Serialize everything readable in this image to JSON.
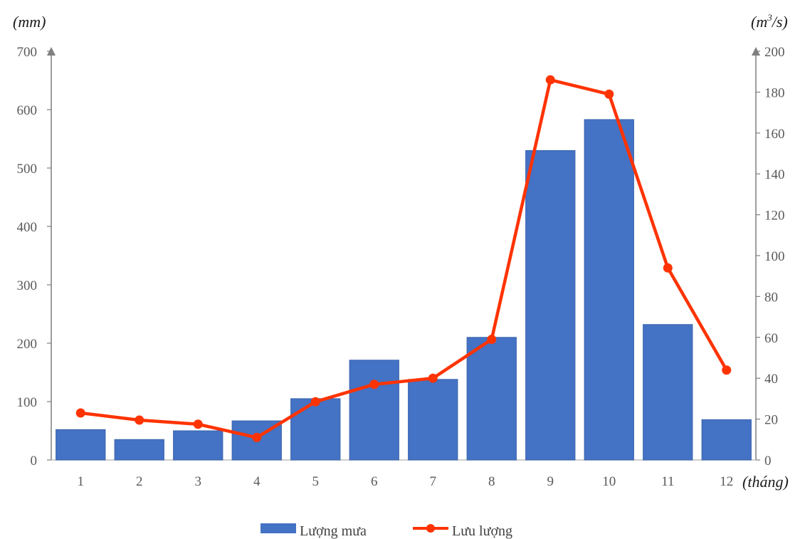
{
  "chart_data": {
    "type": "bar+line",
    "categories": [
      "1",
      "2",
      "3",
      "4",
      "5",
      "6",
      "7",
      "8",
      "9",
      "10",
      "11",
      "12"
    ],
    "x_unit": "(tháng)",
    "series": [
      {
        "name": "Lượng mưa",
        "type": "bar",
        "axis": "left",
        "color": "#4472C4",
        "values": [
          52,
          35,
          50,
          67,
          105,
          171,
          138,
          210,
          530,
          583,
          232,
          69
        ]
      },
      {
        "name": "Lưu lượng",
        "type": "line",
        "axis": "right",
        "color": "#FF3300",
        "values": [
          23,
          19.5,
          17.5,
          11,
          28.5,
          37,
          40,
          59,
          186,
          179,
          94,
          44
        ]
      }
    ],
    "y_left": {
      "unit": "(mm)",
      "ylim": [
        0,
        700
      ],
      "ticks": [
        "0",
        "100",
        "200",
        "300",
        "400",
        "500",
        "600",
        "700"
      ]
    },
    "y_right": {
      "unit_base": "(m",
      "unit_sup": "3",
      "unit_tail": "/s)",
      "ylim": [
        0,
        200
      ],
      "ticks": [
        "0",
        "20",
        "40",
        "60",
        "80",
        "100",
        "120",
        "140",
        "160",
        "180",
        "200"
      ]
    },
    "legend_position": "bottom-center",
    "grid": false
  }
}
